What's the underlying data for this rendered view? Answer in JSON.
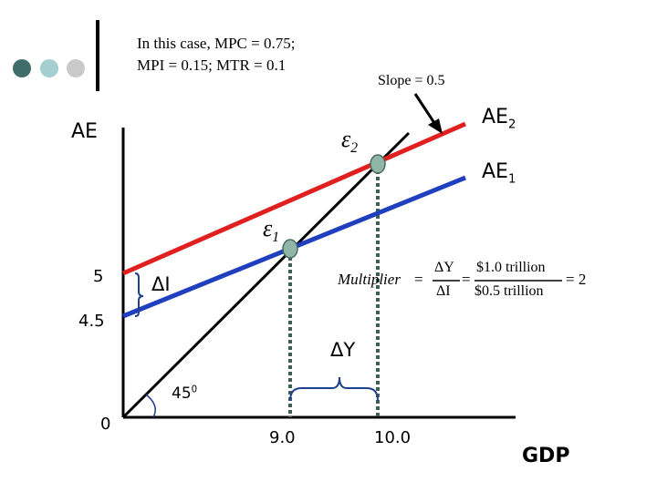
{
  "theme": {
    "dot_colors": [
      "#3f6e6a",
      "#a3cfd0",
      "#c9c9c9"
    ],
    "ae1_color": "#1f3fbf",
    "ae2_color": "#e02020",
    "line45_color": "#000000",
    "point_fill": "#8fb6a6",
    "dashed_color": "#3f5f55",
    "brace_color": "#1f3f8f"
  },
  "header": {
    "line1": "In this case, MPC = 0.75;",
    "line2": "MPI = 0.15; MTR = 0.1"
  },
  "slope_note": "Slope = 0.5",
  "axes": {
    "y_label": "AE",
    "x_label": "GDP",
    "y_ticks": [
      "5",
      "4.5",
      "0"
    ],
    "x_ticks": [
      "9.0",
      "10.0"
    ]
  },
  "curves": {
    "ae2": {
      "base": "AE",
      "sub": "2"
    },
    "ae1": {
      "base": "AE",
      "sub": "1"
    }
  },
  "equilibria": {
    "e2": {
      "symbol": "ε",
      "sub": "2"
    },
    "e1": {
      "symbol": "ε",
      "sub": "1"
    }
  },
  "labels": {
    "delta_i": "ΔI",
    "delta_y": "ΔY",
    "angle_value": "45",
    "angle_unit": "0"
  },
  "multiplier": {
    "word": "Multiplier",
    "eq1": "=",
    "num1": "ΔY",
    "den1": "ΔI",
    "eq2": "=",
    "num2": "$1.0 trillion",
    "den2": "$0.5 trillion",
    "eq3": "= 2"
  },
  "chart_data": {
    "type": "line",
    "title": "",
    "xlabel": "GDP",
    "ylabel": "AE",
    "x_ticks": [
      "9.0",
      "10.0"
    ],
    "y_ticks": [
      "0",
      "4.5",
      "5"
    ],
    "series": [
      {
        "name": "AE2",
        "slope": 0.5,
        "intercept": 5.0
      },
      {
        "name": "AE1",
        "slope": 0.5,
        "intercept": 4.5
      },
      {
        "name": "45-degree line",
        "slope": 1.0,
        "intercept": 0
      }
    ],
    "points": [
      {
        "name": "ε1",
        "x": 9.0,
        "y": 9.0
      },
      {
        "name": "ε2",
        "x": 10.0,
        "y": 10.0
      }
    ],
    "annotations": [
      "Slope = 0.5",
      "ΔI",
      "ΔY",
      "450",
      "Multiplier = ΔY/ΔI = $1.0 trillion/$0.5 trillion = 2"
    ]
  }
}
